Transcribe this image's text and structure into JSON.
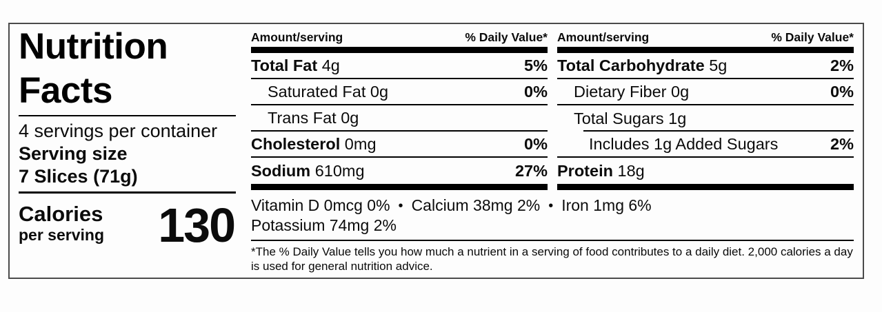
{
  "panel": {
    "title_line1": "Nutrition",
    "title_line2": "Facts",
    "servings_per_container": "4 servings per container",
    "serving_size_label": "Serving size",
    "serving_size_value": "7 Slices (71g)",
    "calories_label": "Calories",
    "calories_sublabel": "per serving",
    "calories_value": "130"
  },
  "columns": [
    {
      "header": {
        "left": "Amount/serving",
        "right": "% Daily Value*"
      },
      "rows": [
        {
          "name": "Total Fat",
          "amount": "4g",
          "dv": "5%",
          "bold_name": true,
          "indent": 0,
          "divider": "full"
        },
        {
          "name": "Saturated Fat",
          "amount": "0g",
          "dv": "0%",
          "bold_name": false,
          "indent": 1,
          "divider": "full"
        },
        {
          "name": "Trans Fat",
          "amount": "0g",
          "dv": "",
          "bold_name": false,
          "indent": 1,
          "divider": "full"
        },
        {
          "name": "Cholesterol",
          "amount": "0mg",
          "dv": "0%",
          "bold_name": true,
          "indent": 0,
          "divider": "full"
        },
        {
          "name": "Sodium",
          "amount": "610mg",
          "dv": "27%",
          "bold_name": true,
          "indent": 0,
          "divider": "none"
        }
      ]
    },
    {
      "header": {
        "left": "Amount/serving",
        "right": "% Daily Value*"
      },
      "rows": [
        {
          "name": "Total Carbohydrate",
          "amount": "5g",
          "dv": "2%",
          "bold_name": true,
          "indent": 0,
          "divider": "full"
        },
        {
          "name": "Dietary Fiber",
          "amount": "0g",
          "dv": "0%",
          "bold_name": false,
          "indent": 1,
          "divider": "full"
        },
        {
          "name": "Total Sugars",
          "amount": "1g",
          "dv": "",
          "bold_name": false,
          "indent": 1,
          "divider": "indented"
        },
        {
          "name": "Includes 1g Added Sugars",
          "amount": "",
          "dv": "2%",
          "bold_name": false,
          "indent": 2,
          "divider": "full"
        },
        {
          "name": "Protein",
          "amount": "18g",
          "dv": "",
          "bold_name": true,
          "indent": 0,
          "divider": "none"
        }
      ]
    }
  ],
  "micronutrients": {
    "separator": "•",
    "line1": [
      "Vitamin D 0mcg 0%",
      "Calcium 38mg 2%",
      "Iron 1mg 6%"
    ],
    "line2": [
      "Potassium 74mg 2%"
    ]
  },
  "footnote": "*The % Daily Value tells you how much a nutrient in a serving of food contributes to a daily diet. 2,000 calories a day is used for general nutrition advice."
}
